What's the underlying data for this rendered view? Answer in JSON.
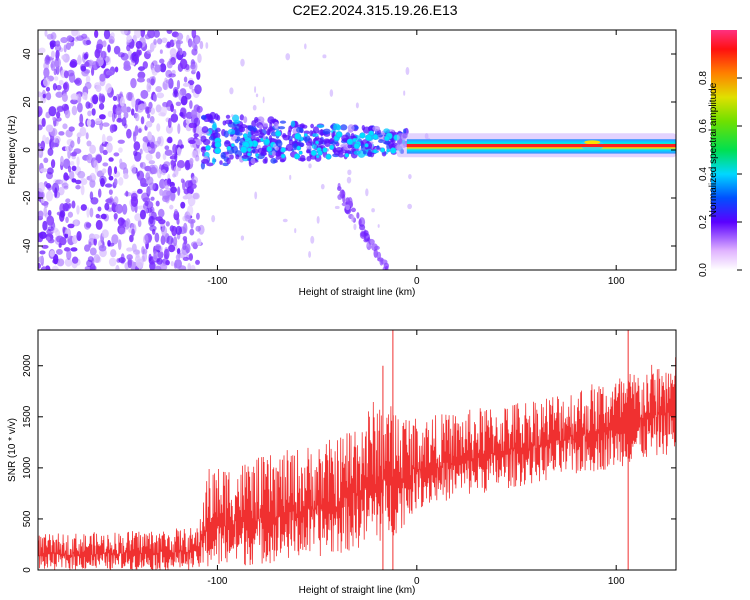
{
  "title": "C2E2.2024.315.19.26.E13",
  "chart_data": [
    {
      "type": "heatmap",
      "xlabel": "Height of straight line (km)",
      "ylabel": "Frequency (Hz)",
      "xlim": [
        -190,
        130
      ],
      "ylim": [
        -50,
        50
      ],
      "xticks": [
        "-100",
        "0",
        "100"
      ],
      "yticks": [
        "-40",
        "-20",
        "0",
        "20",
        "40"
      ],
      "colorbar": {
        "label": "Normalized spectral amplitude",
        "range": [
          0,
          1
        ],
        "ticks": [
          "0.0",
          "0.2",
          "0.4",
          "0.6",
          "0.8"
        ]
      },
      "regions": [
        {
          "name": "noise",
          "x": [
            -190,
            -108
          ],
          "f": [
            -50,
            50
          ],
          "amplitude": 0.15
        },
        {
          "name": "scattered",
          "x": [
            -108,
            -5
          ],
          "f": [
            -10,
            18
          ],
          "amplitude": 0.25
        },
        {
          "name": "branch",
          "x": [
            -40,
            -15
          ],
          "f": [
            -50,
            -15
          ],
          "amplitude": 0.1
        },
        {
          "name": "tone",
          "x": [
            -5,
            130
          ],
          "f": [
            0,
            3
          ],
          "amplitude": 0.95
        }
      ]
    },
    {
      "type": "line",
      "xlabel": "Height of straight line (km)",
      "ylabel": "SNR (10 * v/v)",
      "xlim": [
        -190,
        130
      ],
      "ylim": [
        0,
        2350
      ],
      "xticks": [
        "-100",
        "0",
        "100"
      ],
      "yticks": [
        "0",
        "500",
        "1000",
        "1500",
        "2000"
      ],
      "color": "#f03030",
      "series": [
        {
          "x": [
            -190,
            -150,
            -110,
            -105,
            -80,
            -40,
            -20,
            -10,
            0,
            20,
            60,
            100,
            130
          ],
          "upper": [
            350,
            380,
            420,
            1000,
            1100,
            1300,
            1700,
            1600,
            1500,
            1550,
            1700,
            1900,
            2100
          ],
          "lower": [
            0,
            0,
            0,
            0,
            50,
            150,
            250,
            350,
            600,
            700,
            850,
            1000,
            1150
          ],
          "spikes": [
            {
              "x": -12,
              "y": 2350
            },
            {
              "x": -17,
              "y": 2000
            },
            {
              "x": 106,
              "y": 2350
            }
          ]
        }
      ]
    }
  ]
}
